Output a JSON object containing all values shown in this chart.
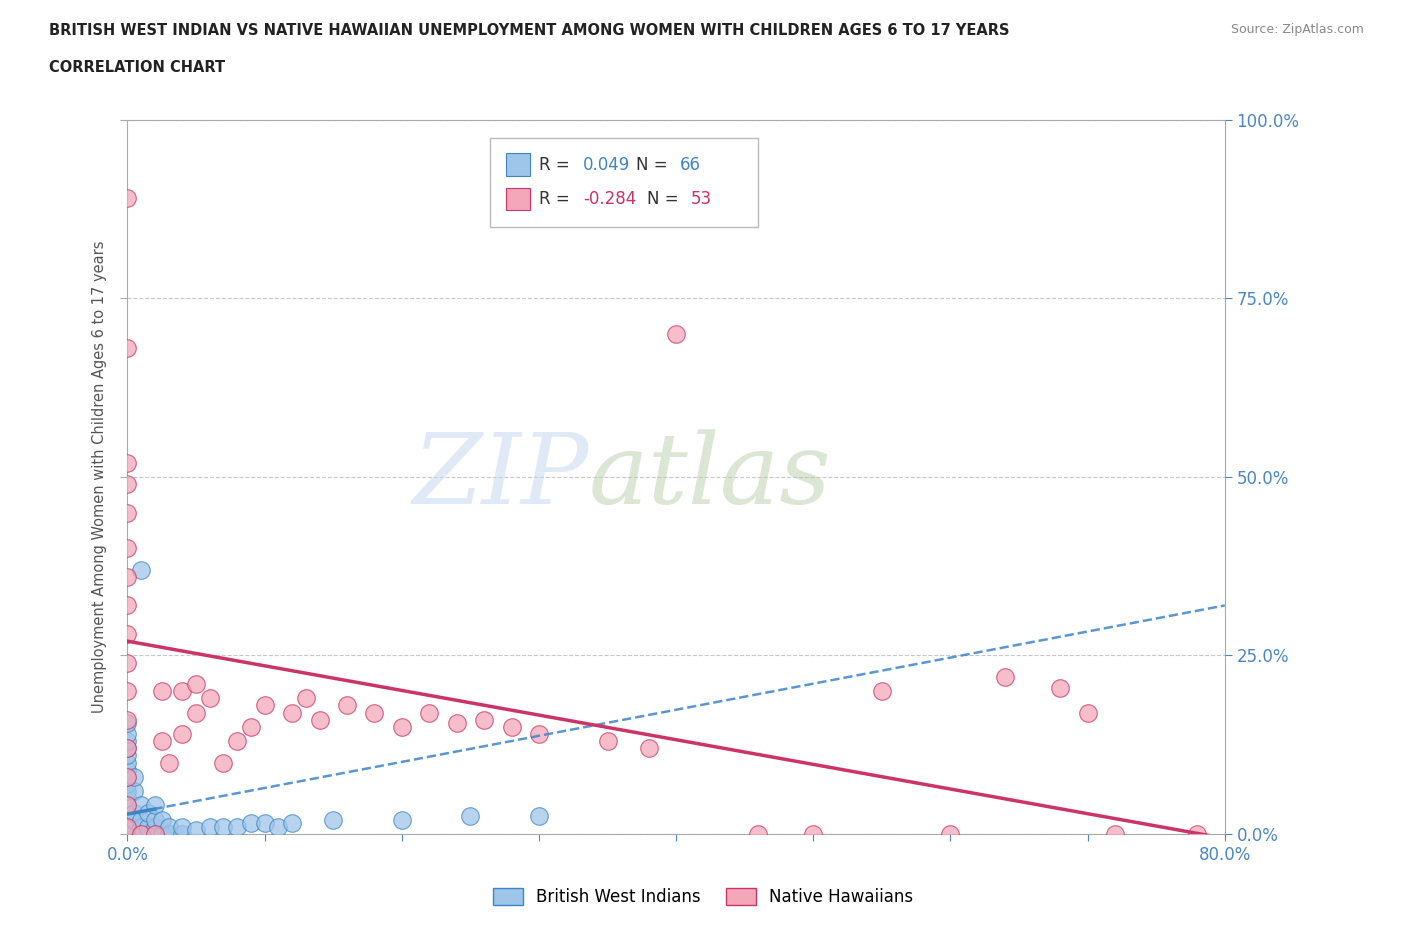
{
  "title_line1": "BRITISH WEST INDIAN VS NATIVE HAWAIIAN UNEMPLOYMENT AMONG WOMEN WITH CHILDREN AGES 6 TO 17 YEARS",
  "title_line2": "CORRELATION CHART",
  "source_text": "Source: ZipAtlas.com",
  "ylabel": "Unemployment Among Women with Children Ages 6 to 17 years",
  "xlim": [
    0.0,
    0.8
  ],
  "ylim": [
    0.0,
    1.0
  ],
  "x_ticks": [
    0.0,
    0.1,
    0.2,
    0.3,
    0.4,
    0.5,
    0.6,
    0.7,
    0.8
  ],
  "y_ticks": [
    0.0,
    0.25,
    0.5,
    0.75,
    1.0
  ],
  "y_tick_labels_right": [
    "0.0%",
    "25.0%",
    "50.0%",
    "75.0%",
    "100.0%"
  ],
  "grid_color": "#c8c8c8",
  "background_color": "#ffffff",
  "watermark_zip": "ZIP",
  "watermark_atlas": "atlas",
  "blue_color": "#9fc5e8",
  "pink_color": "#f4a7b9",
  "blue_edge_color": "#3d85c8",
  "pink_edge_color": "#cc3366",
  "blue_line_color": "#3d85c8",
  "pink_line_color": "#cc3366",
  "title_color": "#222222",
  "axis_label_color": "#555555",
  "tick_color": "#4a86c8",
  "blue_points": [
    [
      0.0,
      0.0
    ],
    [
      0.0,
      0.0
    ],
    [
      0.0,
      0.0
    ],
    [
      0.0,
      0.0
    ],
    [
      0.0,
      0.0
    ],
    [
      0.0,
      0.0
    ],
    [
      0.0,
      0.0
    ],
    [
      0.0,
      0.0
    ],
    [
      0.0,
      0.005
    ],
    [
      0.0,
      0.01
    ],
    [
      0.0,
      0.015
    ],
    [
      0.0,
      0.02
    ],
    [
      0.0,
      0.025
    ],
    [
      0.0,
      0.03
    ],
    [
      0.0,
      0.04
    ],
    [
      0.0,
      0.05
    ],
    [
      0.0,
      0.06
    ],
    [
      0.0,
      0.07
    ],
    [
      0.0,
      0.08
    ],
    [
      0.0,
      0.09
    ],
    [
      0.0,
      0.1
    ],
    [
      0.0,
      0.11
    ],
    [
      0.0,
      0.12
    ],
    [
      0.0,
      0.13
    ],
    [
      0.0,
      0.14
    ],
    [
      0.0,
      0.155
    ],
    [
      0.005,
      0.0
    ],
    [
      0.005,
      0.0
    ],
    [
      0.005,
      0.01
    ],
    [
      0.005,
      0.02
    ],
    [
      0.005,
      0.03
    ],
    [
      0.005,
      0.06
    ],
    [
      0.005,
      0.08
    ],
    [
      0.01,
      0.0
    ],
    [
      0.01,
      0.0
    ],
    [
      0.01,
      0.0
    ],
    [
      0.01,
      0.01
    ],
    [
      0.01,
      0.02
    ],
    [
      0.01,
      0.04
    ],
    [
      0.01,
      0.37
    ],
    [
      0.015,
      0.0
    ],
    [
      0.015,
      0.01
    ],
    [
      0.015,
      0.03
    ],
    [
      0.02,
      0.0
    ],
    [
      0.02,
      0.01
    ],
    [
      0.02,
      0.02
    ],
    [
      0.02,
      0.04
    ],
    [
      0.025,
      0.0
    ],
    [
      0.025,
      0.02
    ],
    [
      0.03,
      0.0
    ],
    [
      0.03,
      0.01
    ],
    [
      0.04,
      0.0
    ],
    [
      0.04,
      0.01
    ],
    [
      0.05,
      0.005
    ],
    [
      0.06,
      0.01
    ],
    [
      0.07,
      0.01
    ],
    [
      0.08,
      0.01
    ],
    [
      0.09,
      0.015
    ],
    [
      0.1,
      0.015
    ],
    [
      0.11,
      0.01
    ],
    [
      0.12,
      0.015
    ],
    [
      0.15,
      0.02
    ],
    [
      0.2,
      0.02
    ],
    [
      0.25,
      0.025
    ],
    [
      0.3,
      0.025
    ]
  ],
  "pink_points": [
    [
      0.0,
      0.89
    ],
    [
      0.0,
      0.68
    ],
    [
      0.0,
      0.52
    ],
    [
      0.0,
      0.49
    ],
    [
      0.0,
      0.45
    ],
    [
      0.0,
      0.4
    ],
    [
      0.0,
      0.36
    ],
    [
      0.0,
      0.32
    ],
    [
      0.0,
      0.28
    ],
    [
      0.0,
      0.24
    ],
    [
      0.0,
      0.2
    ],
    [
      0.0,
      0.16
    ],
    [
      0.0,
      0.12
    ],
    [
      0.0,
      0.08
    ],
    [
      0.0,
      0.04
    ],
    [
      0.0,
      0.01
    ],
    [
      0.01,
      0.0
    ],
    [
      0.02,
      0.0
    ],
    [
      0.025,
      0.13
    ],
    [
      0.025,
      0.2
    ],
    [
      0.03,
      0.1
    ],
    [
      0.04,
      0.14
    ],
    [
      0.04,
      0.2
    ],
    [
      0.05,
      0.17
    ],
    [
      0.05,
      0.21
    ],
    [
      0.06,
      0.19
    ],
    [
      0.07,
      0.1
    ],
    [
      0.08,
      0.13
    ],
    [
      0.09,
      0.15
    ],
    [
      0.1,
      0.18
    ],
    [
      0.12,
      0.17
    ],
    [
      0.13,
      0.19
    ],
    [
      0.14,
      0.16
    ],
    [
      0.16,
      0.18
    ],
    [
      0.18,
      0.17
    ],
    [
      0.2,
      0.15
    ],
    [
      0.22,
      0.17
    ],
    [
      0.24,
      0.155
    ],
    [
      0.26,
      0.16
    ],
    [
      0.28,
      0.15
    ],
    [
      0.3,
      0.14
    ],
    [
      0.35,
      0.13
    ],
    [
      0.38,
      0.12
    ],
    [
      0.4,
      0.7
    ],
    [
      0.46,
      0.0
    ],
    [
      0.5,
      0.0
    ],
    [
      0.55,
      0.2
    ],
    [
      0.6,
      0.0
    ],
    [
      0.64,
      0.22
    ],
    [
      0.68,
      0.205
    ],
    [
      0.7,
      0.17
    ],
    [
      0.72,
      0.0
    ],
    [
      0.78,
      0.0
    ]
  ],
  "blue_intercept": 0.028,
  "blue_slope": 0.365,
  "pink_intercept": 0.27,
  "pink_slope": -0.345
}
